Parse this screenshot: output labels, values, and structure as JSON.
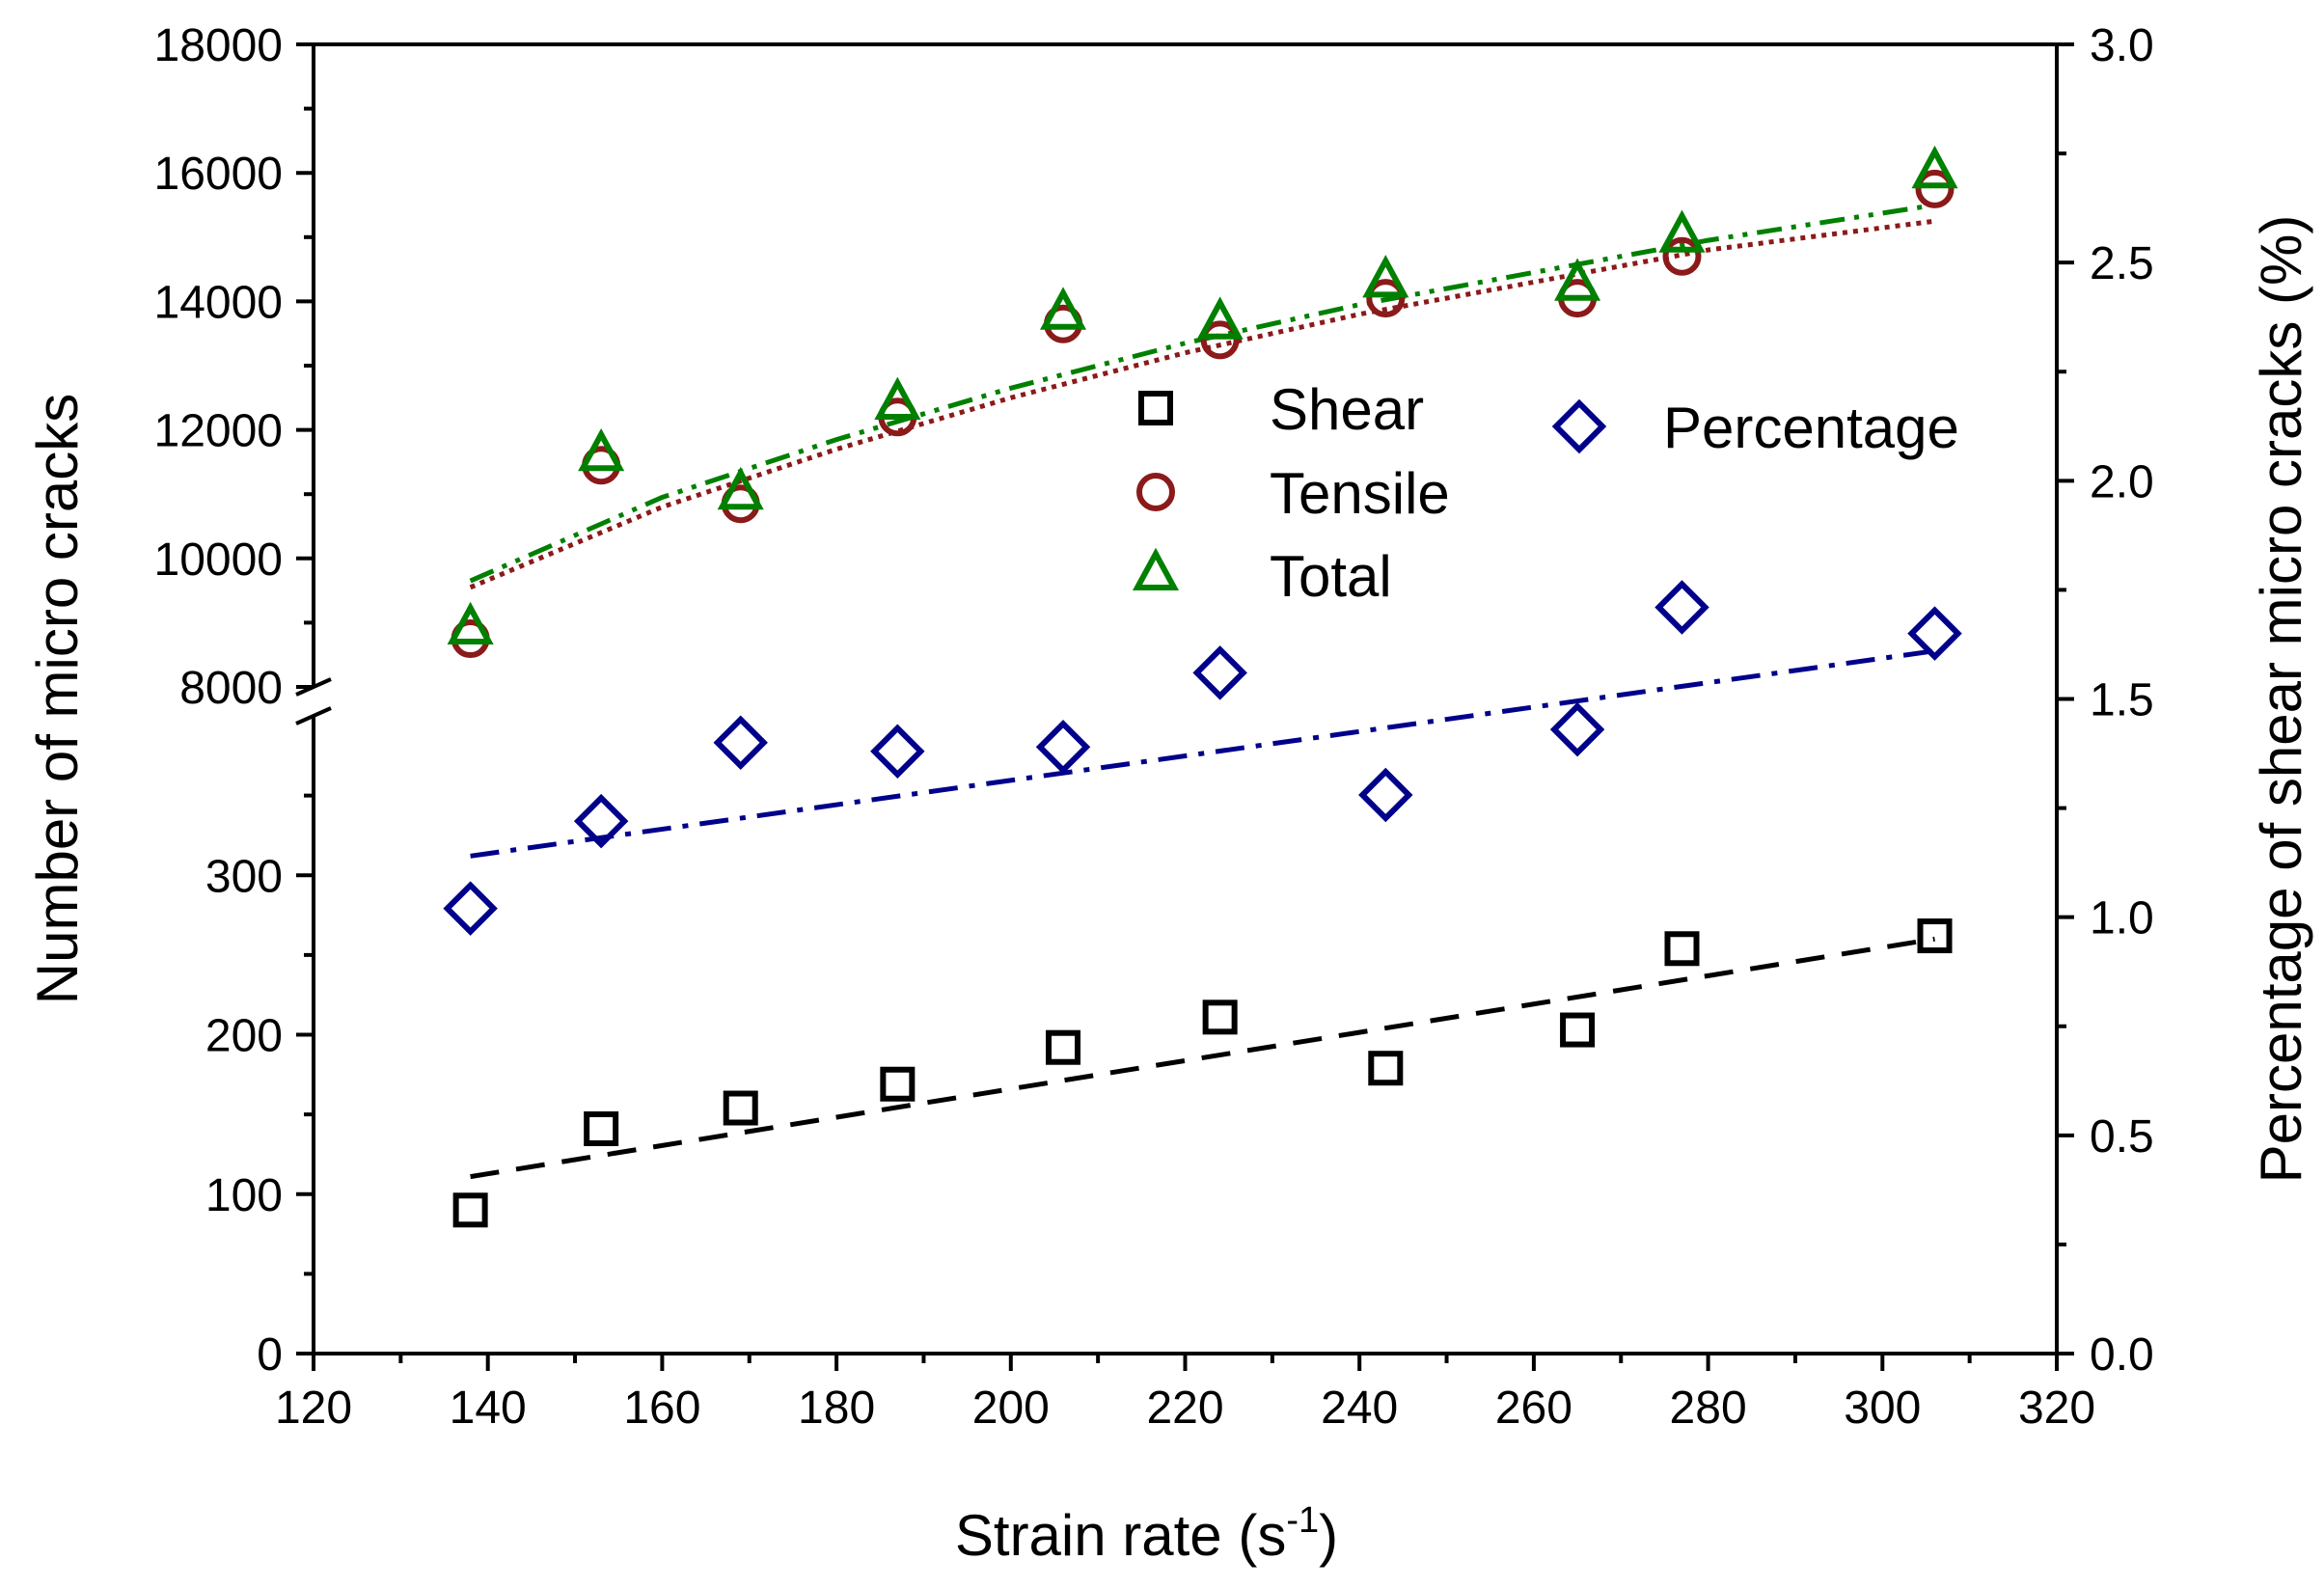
{
  "chart_data": {
    "type": "scatter",
    "x": [
      138,
      153,
      169,
      187,
      206,
      224,
      243,
      265,
      277,
      306
    ],
    "xlabel": "Strain rate (s",
    "xlabel_sup": "-1",
    "xlabel_close": ")",
    "xlim": [
      120,
      320
    ],
    "xticks": [
      120,
      140,
      160,
      180,
      200,
      220,
      240,
      260,
      280,
      300,
      320
    ],
    "ylabel_left": "Number of micro cracks",
    "ylabel_right": "Percentage of shear micro cracks (%)",
    "y_left_lower": {
      "range": [
        0,
        400
      ],
      "ticks": [
        0,
        100,
        200,
        300
      ]
    },
    "y_left_upper": {
      "range": [
        8000,
        18000
      ],
      "ticks": [
        8000,
        10000,
        12000,
        14000,
        16000,
        18000
      ]
    },
    "y_right": {
      "range": [
        0,
        3.0
      ],
      "ticks": [
        "0.0",
        "0.5",
        "1.0",
        "1.5",
        "2.0",
        "2.5",
        "3.0"
      ]
    },
    "legend_position": "center",
    "series": [
      {
        "name": "Shear",
        "axis": "left",
        "marker": "square",
        "color": "#000000",
        "values": [
          90,
          141,
          154,
          169,
          192,
          211,
          179,
          203,
          254,
          262
        ],
        "fit": {
          "style": "dash",
          "from": [
            138,
            111
          ],
          "to": [
            306,
            260
          ]
        }
      },
      {
        "name": "Tensile",
        "axis": "left",
        "marker": "circle",
        "color": "#8b1a1a",
        "values": [
          8750,
          11450,
          10850,
          12200,
          13650,
          13400,
          14050,
          14050,
          14700,
          15750
        ],
        "fit": {
          "style": "dot",
          "points": [
            [
              138,
              9550
            ],
            [
              160,
              10800
            ],
            [
              180,
              11700
            ],
            [
              200,
              12500
            ],
            [
              220,
              13200
            ],
            [
              240,
              13800
            ],
            [
              260,
              14300
            ],
            [
              280,
              14800
            ],
            [
              306,
              15250
            ]
          ]
        }
      },
      {
        "name": "Total",
        "axis": "left",
        "marker": "triangle",
        "color": "#008000",
        "values": [
          8900,
          11600,
          11000,
          12400,
          13800,
          13650,
          14300,
          14250,
          15000,
          16000
        ],
        "fit": {
          "style": "dash-dot-dot",
          "points": [
            [
              138,
              9650
            ],
            [
              160,
              10950
            ],
            [
              180,
              11850
            ],
            [
              200,
              12650
            ],
            [
              220,
              13350
            ],
            [
              240,
              13950
            ],
            [
              260,
              14450
            ],
            [
              280,
              14950
            ],
            [
              306,
              15500
            ]
          ]
        }
      },
      {
        "name": "Percentage",
        "axis": "right",
        "marker": "diamond",
        "color": "#00008b",
        "values": [
          1.02,
          1.22,
          1.4,
          1.38,
          1.39,
          1.56,
          1.28,
          1.43,
          1.71,
          1.65
        ],
        "fit": {
          "style": "dash-dot",
          "from": [
            138,
            1.14
          ],
          "to": [
            306,
            1.61
          ]
        }
      }
    ]
  }
}
